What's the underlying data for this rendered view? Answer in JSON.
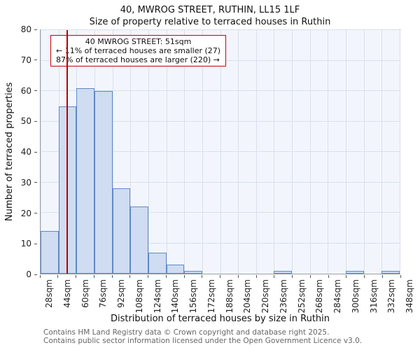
{
  "title": "40, MWROG STREET, RUTHIN, LL15 1LF",
  "subtitle": "Size of property relative to terraced houses in Ruthin",
  "annotation": {
    "line1": "40 MWROG STREET: 51sqm",
    "line2": "← 11% of terraced houses are smaller (27)",
    "line3": "87% of terraced houses are larger (220) →"
  },
  "footer": {
    "line1": "Contains HM Land Registry data © Crown copyright and database right 2025.",
    "line2": "Contains public sector information licensed under the Open Government Licence v3.0."
  },
  "chart_data": {
    "type": "bar",
    "title": "40, MWROG STREET, RUTHIN, LL15 1LF — Size of property relative to terraced houses in Ruthin",
    "xlabel": "Distribution of terraced houses by size in Ruthin",
    "ylabel": "Number of terraced properties",
    "categories": [
      "28sqm",
      "44sqm",
      "60sqm",
      "76sqm",
      "92sqm",
      "108sqm",
      "124sqm",
      "140sqm",
      "156sqm",
      "172sqm",
      "188sqm",
      "204sqm",
      "220sqm",
      "236sqm",
      "252sqm",
      "268sqm",
      "284sqm",
      "300sqm",
      "316sqm",
      "332sqm",
      "348sqm"
    ],
    "bin_start": 28,
    "bin_width": 16,
    "values": [
      14,
      55,
      61,
      60,
      28,
      22,
      7,
      3,
      1,
      0,
      0,
      0,
      0,
      1,
      0,
      0,
      0,
      1,
      0,
      1
    ],
    "ylim": [
      0,
      80
    ],
    "yticks": [
      0,
      10,
      20,
      30,
      40,
      50,
      60,
      70,
      80
    ],
    "grid": true,
    "legend": "none",
    "marker_value": 51,
    "marker_label": "40 MWROG STREET: 51sqm",
    "marker_color": "#c00000",
    "bar_fill": "#cfdcf1",
    "bar_edge": "#6189c4",
    "plot_bg": "#f2f6fc"
  }
}
